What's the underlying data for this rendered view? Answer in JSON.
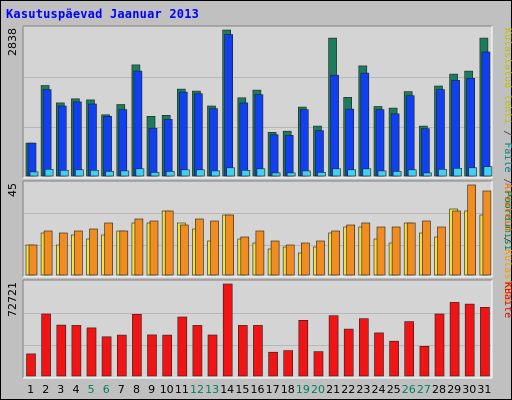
{
  "chart_data": {
    "type": "bar",
    "title": "Kasutuspäevad Jaanuar 2013",
    "categories": [
      "1",
      "2",
      "3",
      "4",
      "5",
      "6",
      "7",
      "8",
      "9",
      "10",
      "11",
      "12",
      "13",
      "14",
      "15",
      "16",
      "17",
      "18",
      "19",
      "20",
      "21",
      "22",
      "23",
      "24",
      "25",
      "26",
      "27",
      "28",
      "29",
      "30",
      "31"
    ],
    "weekend_days": [
      "5",
      "6",
      "12",
      "13",
      "19",
      "20",
      "26",
      "27"
    ],
    "panels": [
      {
        "id": "top",
        "ymax_label": "2838",
        "ymax": 2838,
        "right_label_parts": [
          {
            "text": "Pöördumisi",
            "color": "#008040"
          },
          {
            "text": " / ",
            "color": "#404040"
          },
          {
            "text": "Faile",
            "color": "#008080"
          },
          {
            "text": " / ",
            "color": "#404040"
          },
          {
            "text": "Külastatud lehti",
            "color": "#c0c000"
          }
        ],
        "series": [
          {
            "name": "Pöördumisi",
            "color": "#1c7c5c",
            "values": [
              640,
              1760,
              1420,
              1500,
              1480,
              1190,
              1390,
              2160,
              1160,
              1180,
              1690,
              1650,
              1360,
              2838,
              1520,
              1670,
              850,
              870,
              1340,
              970,
              2680,
              1530,
              2140,
              1350,
              1320,
              1640,
              970,
              1750,
              1980,
              2040,
              2680
            ]
          },
          {
            "name": "Faile",
            "color": "#1040f0",
            "values": [
              640,
              1680,
              1360,
              1440,
              1400,
              1160,
              1290,
              2040,
              930,
              1100,
              1630,
              1600,
              1310,
              2750,
              1420,
              1580,
              800,
              790,
              1290,
              880,
              1960,
              1300,
              2000,
              1290,
              1210,
              1560,
              920,
              1680,
              1860,
              1900,
              2410
            ]
          },
          {
            "name": "Külastatud lehti",
            "color": "#40d0f0",
            "values": [
              80,
              130,
              110,
              120,
              110,
              90,
              100,
              140,
              70,
              90,
              120,
              120,
              100,
              160,
              110,
              140,
              60,
              60,
              100,
              70,
              140,
              120,
              140,
              100,
              90,
              120,
              60,
              130,
              150,
              160,
              180
            ]
          }
        ]
      },
      {
        "id": "mid",
        "ymax_label": "45",
        "ymax": 45,
        "right_label_parts": [
          {
            "text": "Külastusi",
            "color": "#f0a000"
          },
          {
            "text": " / ",
            "color": "#404040"
          },
          {
            "text": "Arvuteid",
            "color": "#f07000"
          }
        ],
        "series": [
          {
            "name": "Arvuteid",
            "color": "#f0e040",
            "values": [
              15,
              21,
              15,
              20,
              18,
              20,
              22,
              26,
              26,
              32,
              26,
              23,
              17,
              30,
              18,
              16,
              13,
              14,
              11,
              14,
              21,
              24,
              24,
              18,
              16,
              26,
              21,
              19,
              33,
              32,
              30
            ]
          },
          {
            "name": "Külastusi",
            "color": "#f08c20",
            "values": [
              15,
              22,
              21,
              22,
              23,
              26,
              22,
              28,
              27,
              32,
              25,
              28,
              27,
              30,
              19,
              22,
              17,
              15,
              16,
              17,
              22,
              25,
              26,
              24,
              24,
              26,
              27,
              24,
              32,
              45,
              42
            ]
          }
        ]
      },
      {
        "id": "bot",
        "ymax_label": "72721",
        "ymax": 72721,
        "right_label_parts": [
          {
            "text": "KBaite",
            "color": "#e00000"
          }
        ],
        "series": [
          {
            "name": "KBaite",
            "color": "#f01414",
            "values": [
              17500,
              49000,
              40200,
              40000,
              38000,
              31000,
              32300,
              48800,
              32500,
              32300,
              46600,
              40000,
              32400,
              72721,
              40000,
              40000,
              18800,
              20100,
              44000,
              19300,
              47700,
              37100,
              45300,
              34100,
              27500,
              43000,
              23500,
              49000,
              58200,
              56800,
              54300
            ]
          }
        ]
      }
    ]
  }
}
